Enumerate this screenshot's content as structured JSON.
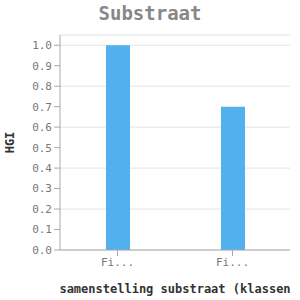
{
  "chart_data": {
    "type": "bar",
    "title": "Substraat",
    "x_label": "samenstelling substraat (klassen",
    "y_label": "HGI",
    "categories": [
      "Fi...",
      "Fi..."
    ],
    "values": [
      1.0,
      0.7
    ],
    "color": "#52b0ee",
    "ylim": [
      0,
      1.05
    ],
    "yticks": [
      {
        "value": 0,
        "label": "0.0"
      },
      {
        "value": 0.1,
        "label": "0.1"
      },
      {
        "value": 0.2,
        "label": "0.2"
      },
      {
        "value": 0.3,
        "label": "0.3"
      },
      {
        "value": 0.4,
        "label": "0.4"
      },
      {
        "value": 0.5,
        "label": "0.5"
      },
      {
        "value": 0.6,
        "label": "0.6"
      },
      {
        "value": 0.7,
        "label": "0.7"
      },
      {
        "value": 0.8,
        "label": "0.8"
      },
      {
        "value": 0.9,
        "label": "0.9"
      },
      {
        "value": 1.0,
        "label": "1.0"
      }
    ],
    "grid": true
  }
}
